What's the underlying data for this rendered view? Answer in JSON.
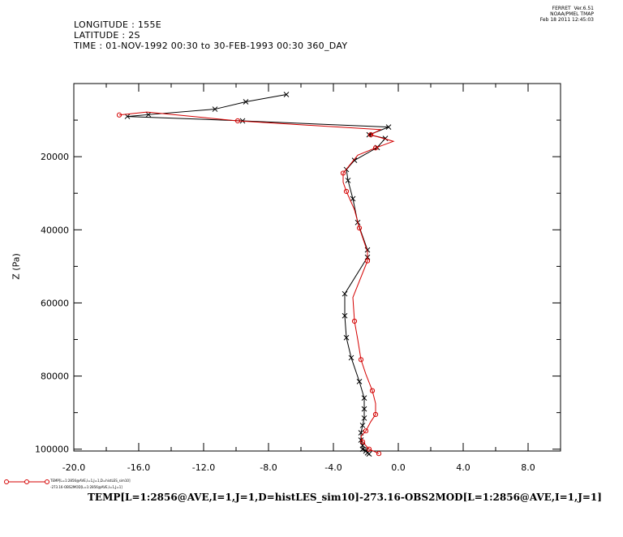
{
  "header": {
    "longitude": "LONGITUDE : 155E",
    "latitude": "LATITUDE : 2S",
    "time": "TIME : 01-NOV-1992 00:30 to 30-FEB-1993 00:30 360_DAY"
  },
  "stamp": {
    "line1": "FERRET  Ver.6.51",
    "line2": "NOAA/PMEL TMAP",
    "line3": "Feb 18 2011 12:45:03"
  },
  "legend": {
    "line1": "TEMP[L=1:2856@AVE,I=1,J=1,D=histLES_sim10]",
    "line2": "-273.16-OBS2MOD[L=1:2856@AVE,I=1,J=1]"
  },
  "caption": "TEMP[L=1:2856@AVE,I=1,J=1,D=histLES_sim10]-273.16-OBS2MOD[L=1:2856@AVE,I=1,J=1]",
  "colors": {
    "red": "#d40000",
    "black": "#000000"
  },
  "chart_data": {
    "type": "line",
    "title": "",
    "xlabel": "",
    "ylabel": "Z (Pa)",
    "xlim": [
      -20,
      10
    ],
    "ylim": [
      100500,
      0
    ],
    "y_inverted": true,
    "grid": false,
    "x_tick_labels": [
      "-20.0",
      "-16.0",
      "-12.0",
      "-8.0",
      "-4.0",
      "0.0",
      "4.0",
      "8.0"
    ],
    "x_tick_values": [
      -20,
      -16,
      -12,
      -8,
      -4,
      0,
      4,
      8
    ],
    "y_tick_labels": [
      "20000",
      "40000",
      "60000",
      "80000",
      "100000"
    ],
    "y_tick_values": [
      20000,
      40000,
      60000,
      80000,
      100000
    ],
    "series": [
      {
        "color": "black",
        "marker": "x",
        "x": [
          -6.9,
          -9.4,
          -11.3,
          -15.4,
          -16.7,
          -9.6,
          -0.6,
          -1.8,
          -0.8,
          -1.3,
          -2.7,
          -3.2,
          -3.1,
          -2.8,
          -2.5,
          -1.9,
          -1.9,
          -3.3,
          -3.3,
          -3.2,
          -2.9,
          -2.4,
          -2.1,
          -2.1,
          -2.1,
          -2.2,
          -2.3,
          -2.3,
          -2.2,
          -2.2,
          -2.0,
          -1.9,
          -1.8
        ],
        "y": [
          3000,
          5000,
          7000,
          8500,
          9000,
          10200,
          11900,
          14000,
          15000,
          17500,
          21000,
          23500,
          26500,
          31500,
          38000,
          45500,
          47500,
          57500,
          63500,
          69500,
          75000,
          81500,
          86000,
          89000,
          91500,
          93500,
          95500,
          97500,
          99000,
          100000,
          100500,
          101000,
          101300
        ]
      },
      {
        "color": "red",
        "x": [
          -17.2,
          -15.5,
          -9.9,
          -1.1,
          -1.7,
          -0.3,
          -1.4,
          -2.5,
          -3.4,
          -3.4,
          -3.2,
          -2.7,
          -2.4,
          -1.9,
          -1.9,
          -2.8,
          -2.7,
          -2.5,
          -2.3,
          -2.0,
          -1.6,
          -1.4,
          -1.4,
          -1.7,
          -2.0,
          -2.3,
          -2.2,
          -2.0,
          -1.8,
          -1.4,
          -1.2
        ],
        "y": [
          8600,
          7800,
          10200,
          12600,
          14000,
          15800,
          17600,
          19600,
          24500,
          27000,
          29500,
          34500,
          39500,
          46000,
          48500,
          58500,
          65000,
          70000,
          75500,
          79500,
          84000,
          87500,
          90500,
          92500,
          95000,
          96500,
          98000,
          99000,
          100000,
          100800,
          101200
        ]
      }
    ]
  }
}
